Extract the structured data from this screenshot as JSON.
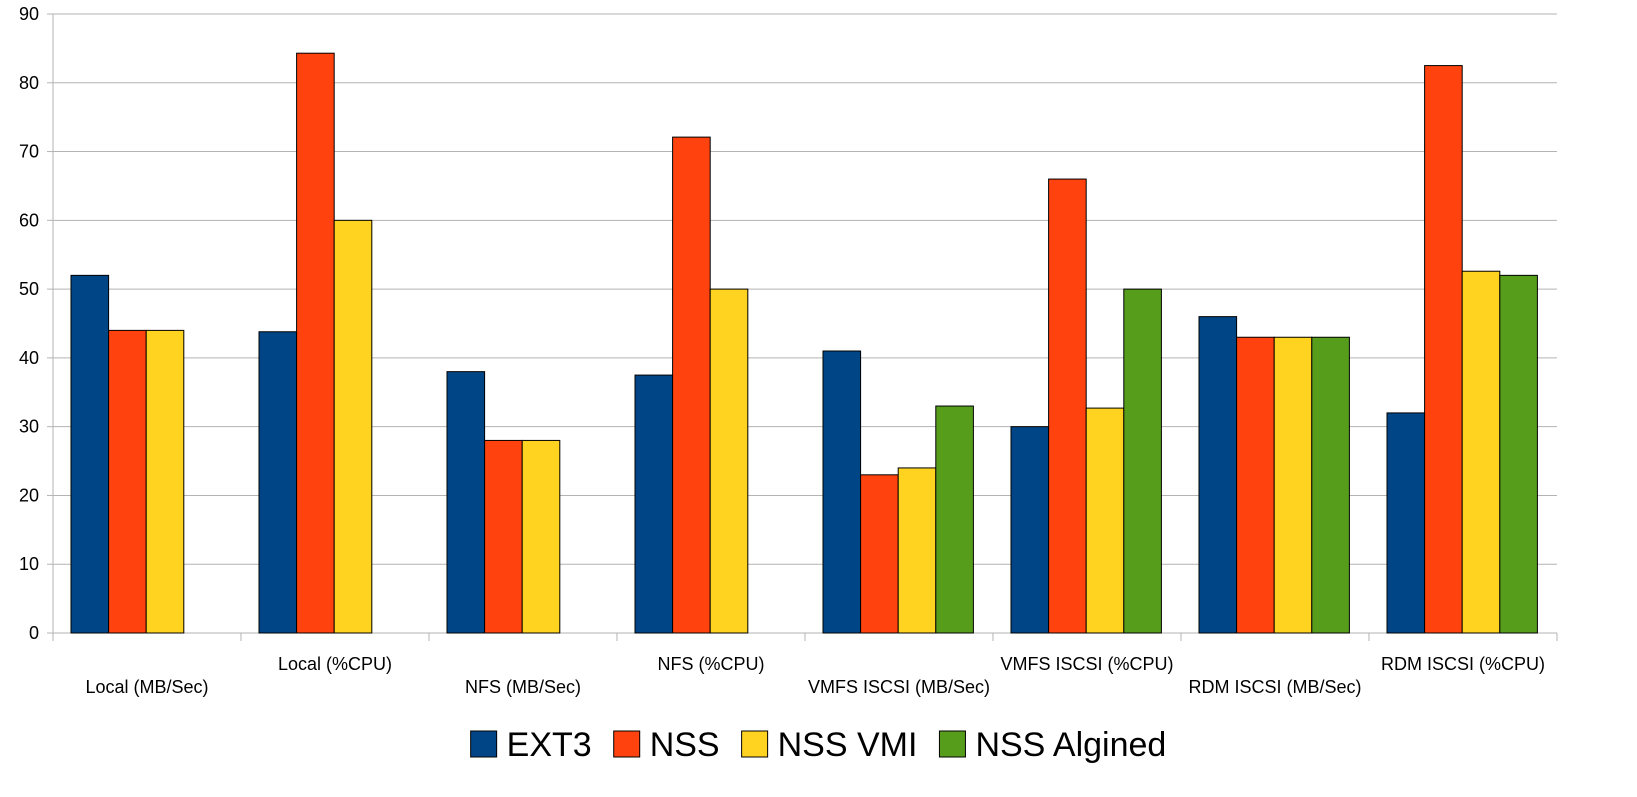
{
  "chart_data": {
    "type": "bar",
    "categories": [
      "Local (MB/Sec)",
      "Local (%CPU)",
      "NFS (MB/Sec)",
      "NFS (%CPU)",
      "VMFS ISCSI (MB/Sec)",
      "VMFS ISCSI (%CPU)",
      "RDM ISCSI (MB/Sec)",
      "RDM ISCSI (%CPU)"
    ],
    "series": [
      {
        "name": "EXT3",
        "color": "#004586",
        "values": [
          52,
          43.8,
          38,
          37.5,
          41,
          30,
          46,
          32
        ]
      },
      {
        "name": "NSS",
        "color": "#ff420e",
        "values": [
          44,
          84.3,
          28,
          72.1,
          23,
          66,
          43,
          82.5
        ]
      },
      {
        "name": "NSS VMI",
        "color": "#ffd320",
        "values": [
          44,
          60,
          28,
          50,
          24,
          32.7,
          43,
          52.6
        ]
      },
      {
        "name": "NSS Algined",
        "color": "#579d1c",
        "values": [
          null,
          null,
          null,
          null,
          33,
          50,
          43,
          52
        ]
      }
    ],
    "ylim": [
      0,
      90
    ],
    "yticks": [
      0,
      10,
      20,
      30,
      40,
      50,
      60,
      70,
      80,
      90
    ],
    "grid": true,
    "legend_position": "bottom"
  }
}
